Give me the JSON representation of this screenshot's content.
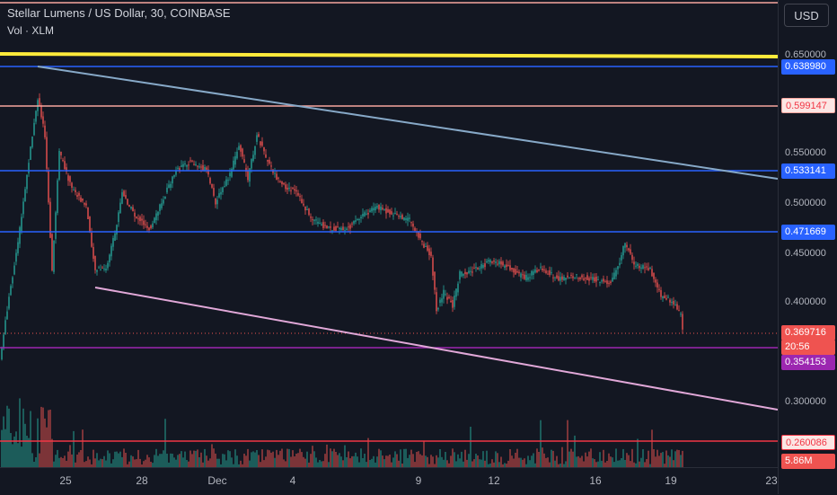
{
  "header": {
    "title": "Stellar Lumens / US Dollar, 30, COINBASE",
    "subtitle": "Vol · XLM"
  },
  "price_axis": {
    "currency_button": "USD",
    "ticks": [
      "0.650000",
      "0.550000",
      "0.500000",
      "0.450000",
      "0.400000",
      "0.300000"
    ],
    "labels": {
      "line_0638980": "0.638980",
      "line_0599147": "0.599147",
      "line_0533141": "0.533141",
      "line_0471669": "0.471669",
      "last_price": "0.369716",
      "countdown": "20:56",
      "line_0354153": "0.354153",
      "line_0260086": "0.260086",
      "volume": "5.86M"
    }
  },
  "time_axis": {
    "labels": [
      "25",
      "28",
      "Dec",
      "4",
      "9",
      "12",
      "16",
      "19",
      "23"
    ]
  },
  "colors": {
    "background": "#131722",
    "up": "#26a69a",
    "down": "#ef5350",
    "yellow_line": "#ffeb3b",
    "blue_line": "#2962ff",
    "salmon_line": "#f7a59e",
    "purple_line": "#9c27b0",
    "red_line": "#f23645",
    "steel_trend": "#87a9c8",
    "pink_trend": "#e1a8d8"
  }
}
